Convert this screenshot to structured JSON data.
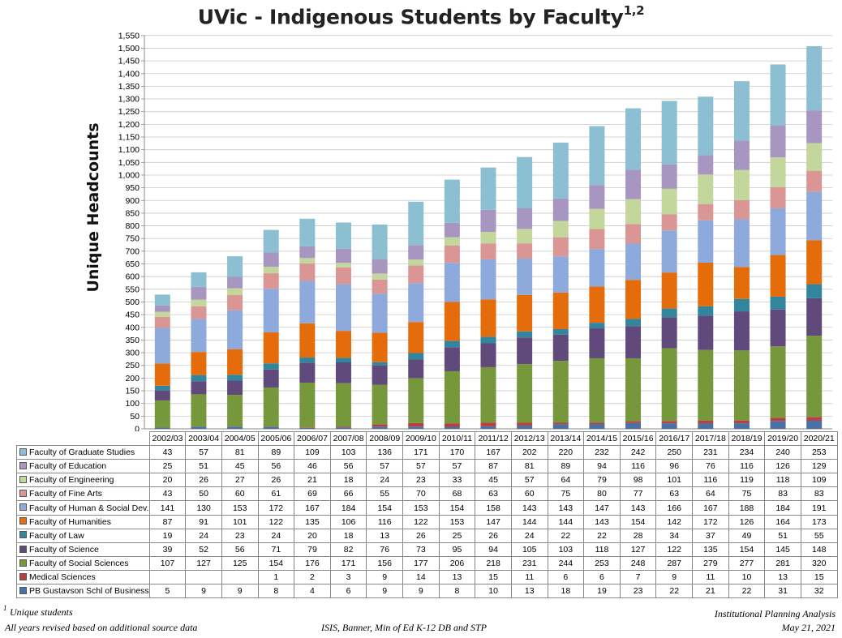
{
  "chart_data": {
    "type": "bar",
    "stacked": true,
    "title": "UVic - Indigenous Students by Faculty",
    "title_superscript": "1,2",
    "ylabel": "Unique Headcounts",
    "ylim": [
      0,
      1550
    ],
    "ytick_step": 50,
    "y_ticks": [
      "0",
      "50",
      "100",
      "150",
      "200",
      "250",
      "300",
      "350",
      "400",
      "450",
      "500",
      "550",
      "600",
      "650",
      "700",
      "750",
      "800",
      "850",
      "900",
      "950",
      "1,000",
      "1,050",
      "1,100",
      "1,150",
      "1,200",
      "1,250",
      "1,300",
      "1,350",
      "1,400",
      "1,450",
      "1,500",
      "1,550"
    ],
    "grid": true,
    "categories": [
      "2002/03",
      "2003/04",
      "2004/05",
      "2005/06",
      "2006/07",
      "2007/08",
      "2008/09",
      "2009/10",
      "2010/11",
      "2011/12",
      "2012/13",
      "2013/14",
      "2014/15",
      "2015/16",
      "2016/17",
      "2017/18",
      "2018/19",
      "2019/20",
      "2020/21"
    ],
    "series": [
      {
        "name": "PB Gustavson Schl of Business",
        "color": "#4a71a6",
        "values": [
          5,
          9,
          9,
          8,
          4,
          6,
          9,
          9,
          8,
          10,
          13,
          18,
          19,
          23,
          22,
          21,
          22,
          31,
          32
        ],
        "display": [
          "5",
          "9",
          "9",
          "8",
          "4",
          "6",
          "9",
          "9",
          "8",
          "10",
          "13",
          "18",
          "19",
          "23",
          "22",
          "21",
          "22",
          "31",
          "32"
        ]
      },
      {
        "name": "Medical Sciences",
        "color": "#b8413f",
        "values": [
          0,
          0,
          0,
          1,
          2,
          3,
          9,
          14,
          13,
          15,
          11,
          6,
          6,
          7,
          9,
          11,
          10,
          13,
          15
        ],
        "display": [
          "",
          "",
          "",
          "1",
          "2",
          "3",
          "9",
          "14",
          "13",
          "15",
          "11",
          "6",
          "6",
          "7",
          "9",
          "11",
          "10",
          "13",
          "15"
        ]
      },
      {
        "name": "Faculty of Social Sciences",
        "color": "#77973d",
        "values": [
          107,
          127,
          125,
          154,
          176,
          171,
          156,
          177,
          206,
          218,
          231,
          244,
          253,
          248,
          287,
          279,
          277,
          281,
          320
        ],
        "display": [
          "107",
          "127",
          "125",
          "154",
          "176",
          "171",
          "156",
          "177",
          "206",
          "218",
          "231",
          "244",
          "253",
          "248",
          "287",
          "279",
          "277",
          "281",
          "320"
        ]
      },
      {
        "name": "Faculty of Science",
        "color": "#604a7b",
        "values": [
          39,
          52,
          56,
          71,
          79,
          82,
          76,
          73,
          95,
          94,
          105,
          103,
          118,
          127,
          122,
          135,
          154,
          145,
          148
        ],
        "display": [
          "39",
          "52",
          "56",
          "71",
          "79",
          "82",
          "76",
          "73",
          "95",
          "94",
          "105",
          "103",
          "118",
          "127",
          "122",
          "135",
          "154",
          "145",
          "148"
        ]
      },
      {
        "name": "Faculty of Law",
        "color": "#31859c",
        "values": [
          19,
          24,
          23,
          24,
          20,
          18,
          13,
          26,
          25,
          26,
          24,
          22,
          22,
          28,
          34,
          37,
          49,
          51,
          55
        ],
        "display": [
          "19",
          "24",
          "23",
          "24",
          "20",
          "18",
          "13",
          "26",
          "25",
          "26",
          "24",
          "22",
          "22",
          "28",
          "34",
          "37",
          "49",
          "51",
          "55"
        ]
      },
      {
        "name": "Faculty of Humanities",
        "color": "#e46c0a",
        "values": [
          87,
          91,
          101,
          122,
          135,
          106,
          116,
          122,
          153,
          147,
          144,
          144,
          143,
          154,
          142,
          172,
          126,
          164,
          173
        ],
        "display": [
          "87",
          "91",
          "101",
          "122",
          "135",
          "106",
          "116",
          "122",
          "153",
          "147",
          "144",
          "144",
          "143",
          "154",
          "142",
          "172",
          "126",
          "164",
          "173"
        ]
      },
      {
        "name": "Faculty of Human & Social Dev.",
        "color": "#8ea9db",
        "values": [
          141,
          130,
          153,
          172,
          167,
          184,
          154,
          153,
          154,
          158,
          143,
          143,
          147,
          143,
          166,
          167,
          188,
          184,
          191
        ],
        "display": [
          "141",
          "130",
          "153",
          "172",
          "167",
          "184",
          "154",
          "153",
          "154",
          "158",
          "143",
          "143",
          "147",
          "143",
          "166",
          "167",
          "188",
          "184",
          "191"
        ]
      },
      {
        "name": "Faculty of Fine Arts",
        "color": "#d99694",
        "values": [
          43,
          50,
          60,
          61,
          69,
          66,
          55,
          70,
          68,
          63,
          60,
          75,
          80,
          77,
          63,
          64,
          75,
          83,
          83
        ],
        "display": [
          "43",
          "50",
          "60",
          "61",
          "69",
          "66",
          "55",
          "70",
          "68",
          "63",
          "60",
          "75",
          "80",
          "77",
          "63",
          "64",
          "75",
          "83",
          "83"
        ]
      },
      {
        "name": "Faculty of Engineering",
        "color": "#c3d69b",
        "values": [
          20,
          26,
          27,
          26,
          21,
          18,
          24,
          23,
          33,
          45,
          57,
          64,
          79,
          98,
          101,
          116,
          119,
          118,
          109
        ],
        "display": [
          "20",
          "26",
          "27",
          "26",
          "21",
          "18",
          "24",
          "23",
          "33",
          "45",
          "57",
          "64",
          "79",
          "98",
          "101",
          "116",
          "119",
          "118",
          "109"
        ]
      },
      {
        "name": "Faculty of Education",
        "color": "#a696c0",
        "values": [
          25,
          51,
          45,
          56,
          46,
          56,
          57,
          57,
          57,
          87,
          81,
          89,
          94,
          116,
          96,
          76,
          116,
          126,
          129
        ],
        "display": [
          "25",
          "51",
          "45",
          "56",
          "46",
          "56",
          "57",
          "57",
          "57",
          "87",
          "81",
          "89",
          "94",
          "116",
          "96",
          "76",
          "116",
          "126",
          "129"
        ]
      },
      {
        "name": "Faculty of Graduate Studies",
        "color": "#8cbfd1",
        "values": [
          43,
          57,
          81,
          89,
          109,
          103,
          136,
          171,
          170,
          167,
          202,
          220,
          232,
          242,
          250,
          231,
          234,
          240,
          253
        ],
        "display": [
          "43",
          "57",
          "81",
          "89",
          "109",
          "103",
          "136",
          "171",
          "170",
          "167",
          "202",
          "220",
          "232",
          "242",
          "250",
          "231",
          "234",
          "240",
          "253"
        ]
      }
    ]
  },
  "footnotes": {
    "mark": "1",
    "left_line1": "Unique students",
    "left_line2": "All years revised based on additional source data",
    "center": "ISIS, Banner, Min of Ed K-12 DB and STP",
    "right_line1": "Institutional Planning Analysis",
    "right_line2": "May 21, 2021"
  }
}
